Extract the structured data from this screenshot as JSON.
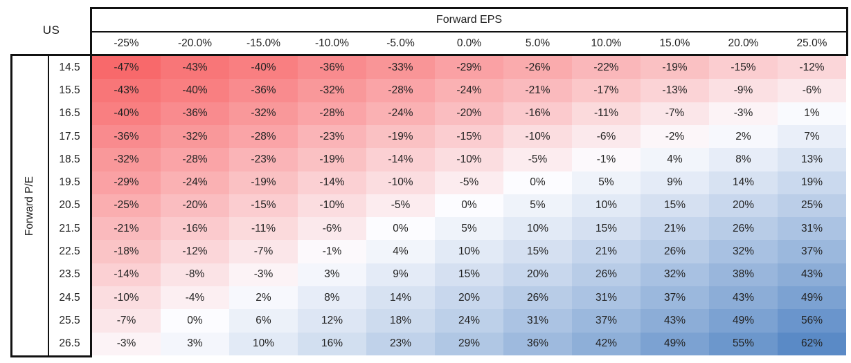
{
  "table": {
    "corner_label": "US",
    "col_group_label": "Forward EPS",
    "row_group_label": "Forward P/E"
  },
  "colors": {
    "negative_extreme": "#F8696B",
    "neutral_mid": "#FCFCFF",
    "positive_extreme": "#5A8AC6",
    "border": "#111111",
    "text": "#1f1f1f"
  },
  "chart_data": {
    "type": "heatmap",
    "title": "US",
    "x_axis_label": "Forward EPS",
    "y_axis_label": "Forward P/E",
    "x_labels": [
      "-25%",
      "-20.0%",
      "-15.0%",
      "-10.0%",
      "-5.0%",
      "0.0%",
      "5.0%",
      "10.0%",
      "15.0%",
      "20.0%",
      "25.0%"
    ],
    "y_labels": [
      "14.5",
      "15.5",
      "16.5",
      "17.5",
      "18.5",
      "19.5",
      "20.5",
      "21.5",
      "22.5",
      "23.5",
      "24.5",
      "25.5",
      "26.5"
    ],
    "values_percent": [
      [
        -47,
        -43,
        -40,
        -36,
        -33,
        -29,
        -26,
        -22,
        -19,
        -15,
        -12
      ],
      [
        -43,
        -40,
        -36,
        -32,
        -28,
        -24,
        -21,
        -17,
        -13,
        -9,
        -6
      ],
      [
        -40,
        -36,
        -32,
        -28,
        -24,
        -20,
        -16,
        -11,
        -7,
        -3,
        1
      ],
      [
        -36,
        -32,
        -28,
        -23,
        -19,
        -15,
        -10,
        -6,
        -2,
        2,
        7
      ],
      [
        -32,
        -28,
        -23,
        -19,
        -14,
        -10,
        -5,
        -1,
        4,
        8,
        13
      ],
      [
        -29,
        -24,
        -19,
        -14,
        -10,
        -5,
        0,
        5,
        9,
        14,
        19
      ],
      [
        -25,
        -20,
        -15,
        -10,
        -5,
        0,
        5,
        10,
        15,
        20,
        25
      ],
      [
        -21,
        -16,
        -11,
        -6,
        0,
        5,
        10,
        15,
        21,
        26,
        31
      ],
      [
        -18,
        -12,
        -7,
        -1,
        4,
        10,
        15,
        21,
        26,
        32,
        37
      ],
      [
        -14,
        -8,
        -3,
        3,
        9,
        15,
        20,
        26,
        32,
        38,
        43
      ],
      [
        -10,
        -4,
        2,
        8,
        14,
        20,
        26,
        31,
        37,
        43,
        49
      ],
      [
        -7,
        0,
        6,
        12,
        18,
        24,
        31,
        37,
        43,
        49,
        56
      ],
      [
        -3,
        3,
        10,
        16,
        23,
        29,
        36,
        42,
        49,
        55,
        62
      ]
    ],
    "value_suffix": "%",
    "colorscale": {
      "min": -47,
      "mid": 0,
      "max": 62,
      "min_color": "#F8696B",
      "mid_color": "#FCFCFF",
      "max_color": "#5A8AC6"
    },
    "legend": "none",
    "grid": "off"
  }
}
